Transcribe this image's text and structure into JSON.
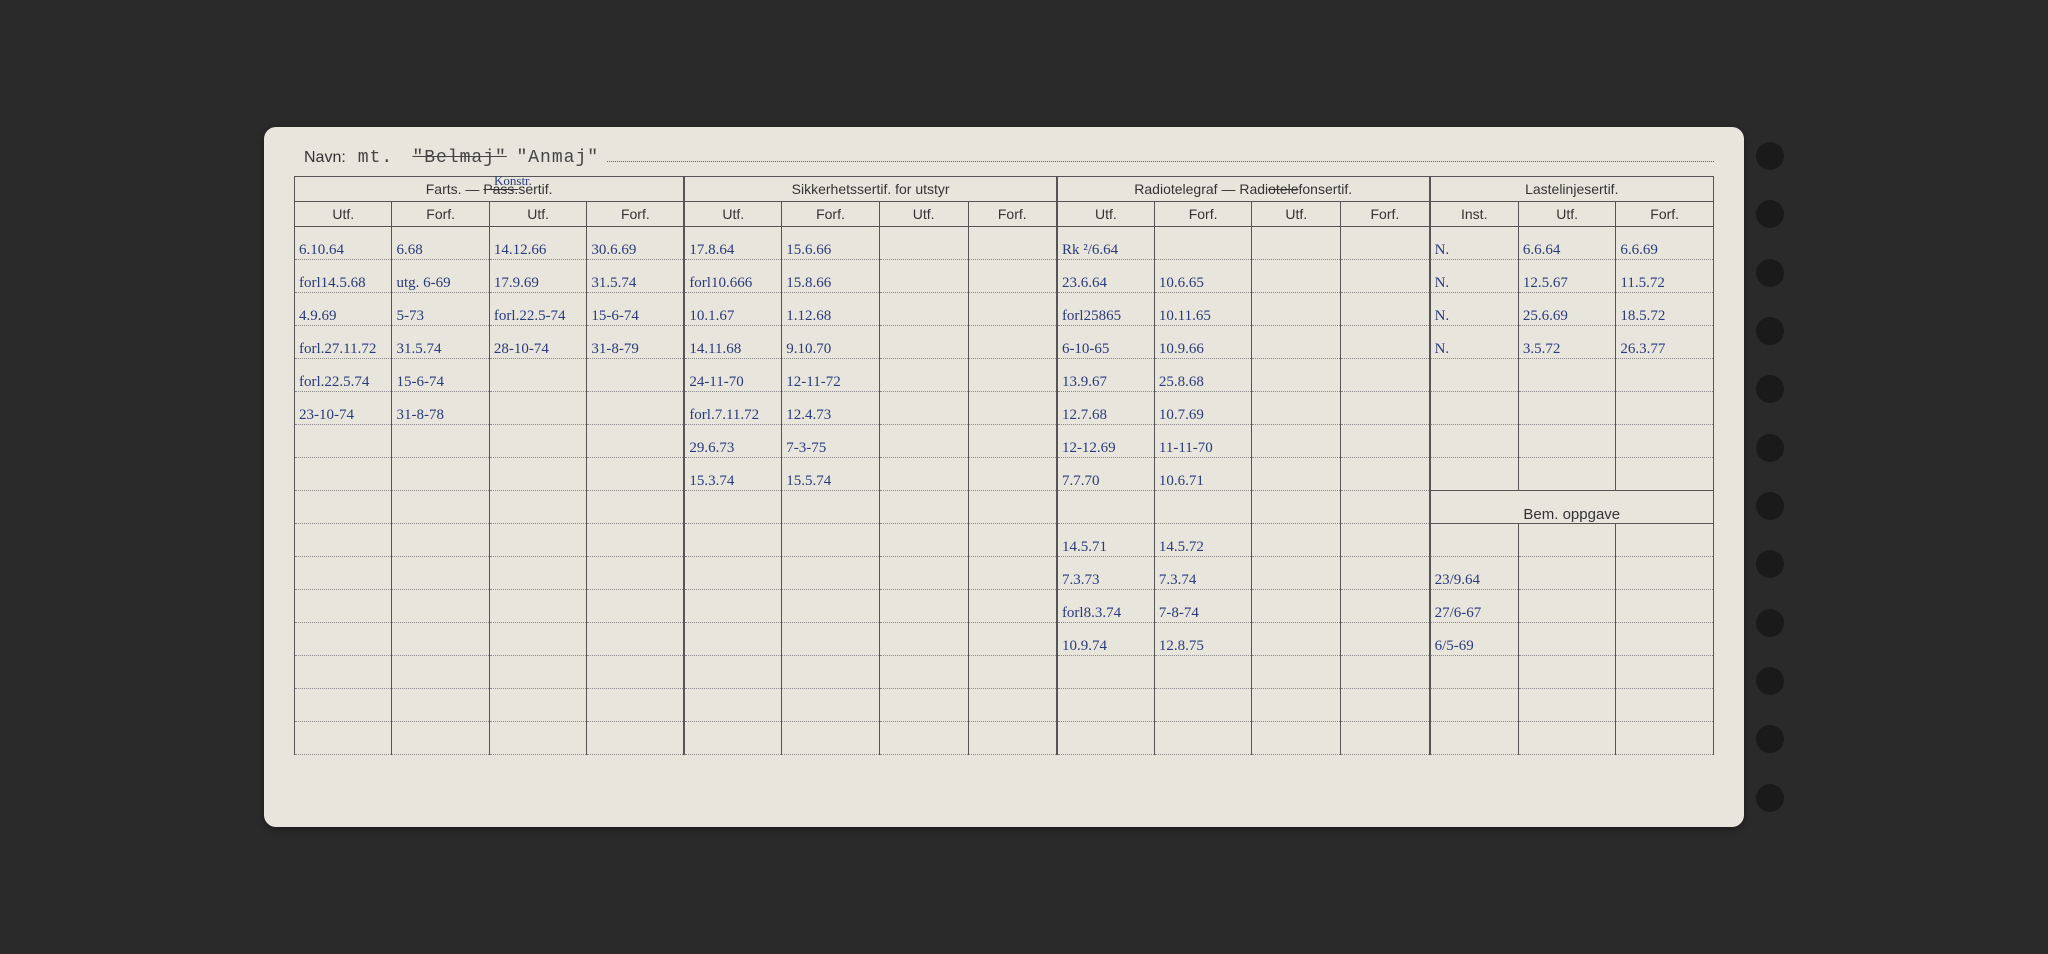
{
  "header": {
    "navn_label": "Navn:",
    "prefix": "mt.",
    "name_struck": "\"Belmaj\"",
    "name_new": "\"Anmaj\""
  },
  "col_groups": [
    {
      "title": "Farts. — Pass.sertif.",
      "annot": "Konstr.",
      "cols": [
        "Utf.",
        "Forf.",
        "Utf.",
        "Forf."
      ]
    },
    {
      "title": "Sikkerhetssertif. for utstyr",
      "cols": [
        "Utf.",
        "Forf.",
        "Utf.",
        "Forf."
      ]
    },
    {
      "title": "Radiotelegraf — Radiotelefonsertif.",
      "cols": [
        "Utf.",
        "Forf.",
        "Utf.",
        "Forf."
      ]
    },
    {
      "title": "Lastelinjesertif.",
      "cols": [
        "Inst.",
        "Utf.",
        "Forf."
      ]
    }
  ],
  "bem_label": "Bem. oppgave",
  "rows": [
    {
      "c": [
        "6.10.64",
        "6.68",
        "14.12.66",
        "30.6.69",
        "17.8.64",
        "15.6.66",
        "",
        "",
        "Rk ²/6.64",
        "",
        "",
        "",
        "N.",
        "6.6.64",
        "6.6.69"
      ]
    },
    {
      "c": [
        "forl14.5.68",
        "utg. 6-69",
        "17.9.69",
        "31.5.74",
        "forl10.666",
        "15.8.66",
        "",
        "",
        "23.6.64",
        "10.6.65",
        "",
        "",
        "N.",
        "12.5.67",
        "11.5.72"
      ]
    },
    {
      "c": [
        "4.9.69",
        "5-73",
        "forl.22.5-74",
        "15-6-74",
        "10.1.67",
        "1.12.68",
        "",
        "",
        "forl25865",
        "10.11.65",
        "",
        "",
        "N.",
        "25.6.69",
        "18.5.72"
      ]
    },
    {
      "c": [
        "forl.27.11.72",
        "31.5.74",
        "28-10-74",
        "31-8-79",
        "14.11.68",
        "9.10.70",
        "",
        "",
        "6-10-65",
        "10.9.66",
        "",
        "",
        "N.",
        "3.5.72",
        "26.3.77"
      ]
    },
    {
      "c": [
        "forl.22.5.74",
        "15-6-74",
        "",
        "",
        "24-11-70",
        "12-11-72",
        "",
        "",
        "13.9.67",
        "25.8.68",
        "",
        "",
        "",
        "",
        ""
      ]
    },
    {
      "c": [
        "23-10-74",
        "31-8-78",
        "",
        "",
        "forl.7.11.72",
        "12.4.73",
        "",
        "",
        "12.7.68",
        "10.7.69",
        "",
        "",
        "",
        "",
        ""
      ]
    },
    {
      "c": [
        "",
        "",
        "",
        "",
        "29.6.73",
        "7-3-75",
        "",
        "",
        "12-12.69",
        "11-11-70",
        "",
        "",
        "",
        "",
        ""
      ]
    },
    {
      "c": [
        "",
        "",
        "",
        "",
        "15.3.74",
        "15.5.74",
        "",
        "",
        "7.7.70",
        "10.6.71",
        "",
        "",
        "",
        "",
        ""
      ]
    }
  ],
  "rows_after_bem": [
    {
      "c": [
        "",
        "",
        "",
        "",
        "",
        "",
        "",
        "",
        "14.5.71",
        "14.5.72",
        "",
        "",
        "",
        "",
        ""
      ]
    },
    {
      "c": [
        "",
        "",
        "",
        "",
        "",
        "",
        "",
        "",
        "7.3.73",
        "7.3.74",
        "",
        "",
        "23/9.64",
        "",
        ""
      ]
    },
    {
      "c": [
        "",
        "",
        "",
        "",
        "",
        "",
        "",
        "",
        "forl8.3.74",
        "7-8-74",
        "",
        "",
        "27/6-67",
        "",
        ""
      ]
    },
    {
      "c": [
        "",
        "",
        "",
        "",
        "",
        "",
        "",
        "",
        "10.9.74",
        "12.8.75",
        "",
        "",
        "6/5-69",
        "",
        ""
      ]
    },
    {
      "c": [
        "",
        "",
        "",
        "",
        "",
        "",
        "",
        "",
        "",
        "",
        "",
        "",
        "",
        "",
        ""
      ]
    },
    {
      "c": [
        "",
        "",
        "",
        "",
        "",
        "",
        "",
        "",
        "",
        "",
        "",
        "",
        "",
        "",
        ""
      ]
    },
    {
      "c": [
        "",
        "",
        "",
        "",
        "",
        "",
        "",
        "",
        "",
        "",
        "",
        "",
        "",
        "",
        ""
      ]
    }
  ],
  "style": {
    "ink_color": "#2a3a7a",
    "print_color": "#333",
    "paper_color": "#e8e6dc",
    "border_color": "#555"
  }
}
